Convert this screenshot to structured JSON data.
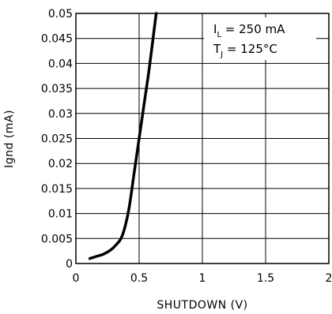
{
  "chart_data": {
    "type": "line",
    "title": "",
    "xlabel": "SHUTDOWN (V)",
    "ylabel": "Ignd (mA)",
    "xlim": [
      0,
      2
    ],
    "ylim": [
      0,
      0.05
    ],
    "grid": true,
    "x_ticks": [
      "0",
      "0.5",
      "1",
      "1.5",
      "2"
    ],
    "y_ticks": [
      "0",
      "0.005",
      "0.01",
      "0.015",
      "0.02",
      "0.025",
      "0.03",
      "0.035",
      "0.04",
      "0.045",
      "0.05"
    ],
    "series": [
      {
        "x": [
          0.11,
          0.16,
          0.22,
          0.28,
          0.32,
          0.35,
          0.37,
          0.39,
          0.42,
          0.46,
          0.5,
          0.54,
          0.58,
          0.62,
          0.635
        ],
        "y": [
          0.001,
          0.0014,
          0.0019,
          0.0028,
          0.0038,
          0.0047,
          0.0058,
          0.0075,
          0.011,
          0.018,
          0.025,
          0.032,
          0.039,
          0.047,
          0.05
        ]
      }
    ],
    "annotations": {
      "line1_main": "I",
      "line1_sub": "L",
      "line1_rest": " = 250 mA",
      "line2_main": "T",
      "line2_sub": "J",
      "line2_rest": " = 125°C"
    }
  }
}
